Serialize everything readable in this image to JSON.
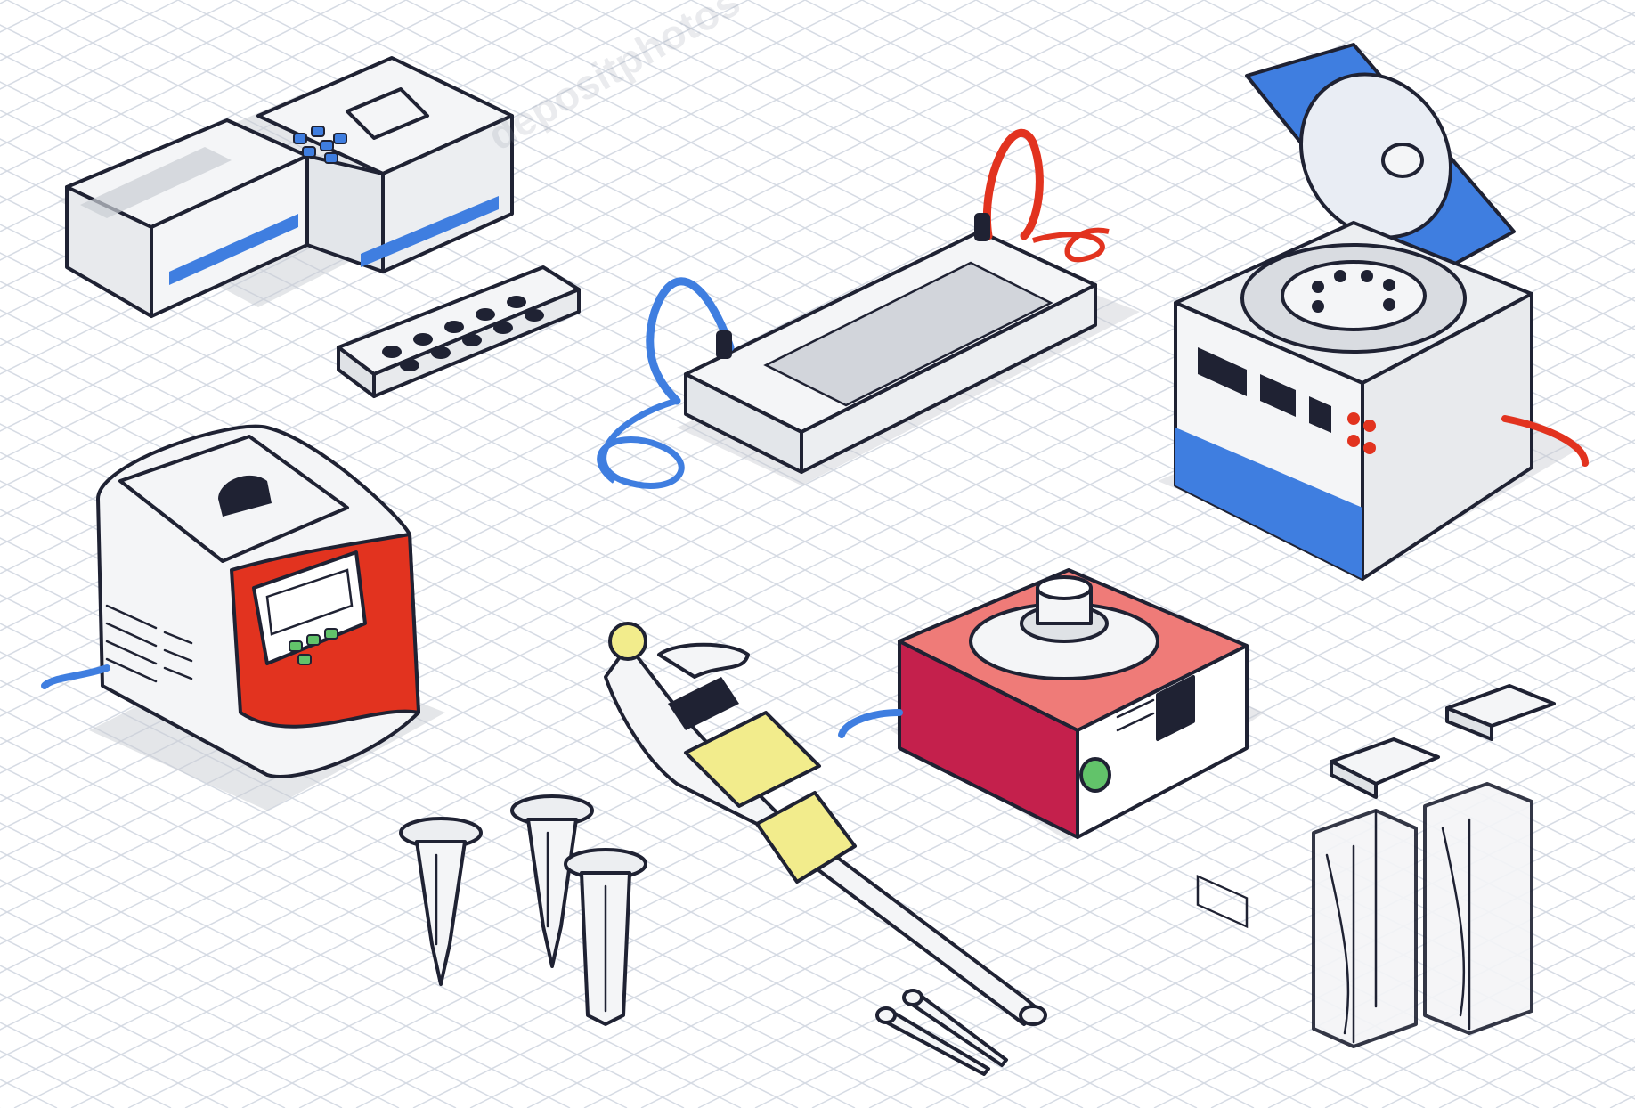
{
  "palette": {
    "background": "#ffffff",
    "grid": "#d6dbe4",
    "ink": "#1f2233",
    "body_white": "#f4f5f7",
    "shade_gray": "#c9cdd3",
    "accent_blue": "#3f7ee0",
    "accent_red": "#e2331f",
    "accent_yellow": "#f2ec8c",
    "heater_red": "#c4204c",
    "heater_pink": "#ef7b78",
    "button_green": "#62c36a"
  },
  "watermark": {
    "text": "depositphotos"
  },
  "objects": [
    {
      "id": "spectrophotometer",
      "icon": "spectrophotometer-icon"
    },
    {
      "id": "gel-electrophoresis-tank",
      "icon": "electrophoresis-tank-icon"
    },
    {
      "id": "microcentrifuge",
      "icon": "centrifuge-icon"
    },
    {
      "id": "pcr-thermocycler",
      "icon": "thermocycler-icon"
    },
    {
      "id": "dry-block-heater",
      "icon": "heater-icon"
    },
    {
      "id": "micropipette",
      "icon": "micropipette-icon"
    },
    {
      "id": "pipette-tips",
      "icon": "pipette-tip-icon"
    },
    {
      "id": "microcentrifuge-tubes",
      "icon": "test-tube-icon"
    },
    {
      "id": "cuvettes",
      "icon": "cuvette-icon"
    }
  ]
}
